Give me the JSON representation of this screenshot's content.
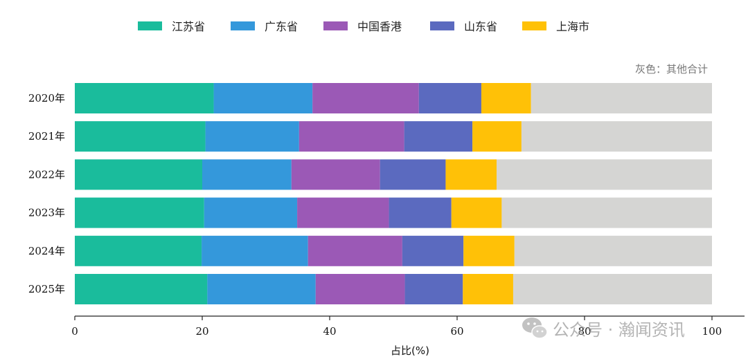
{
  "chart_data": {
    "type": "bar",
    "orientation": "horizontal",
    "stacked": true,
    "categories": [
      "2020年",
      "2021年",
      "2022年",
      "2023年",
      "2024年",
      "2025年"
    ],
    "series": [
      {
        "name": "江苏省",
        "color": "#1abc9c",
        "values": [
          21.8,
          20.5,
          20.0,
          20.3,
          19.9,
          20.8
        ]
      },
      {
        "name": "广东省",
        "color": "#3498db",
        "values": [
          15.5,
          14.7,
          14.0,
          14.6,
          16.7,
          17.0
        ]
      },
      {
        "name": "中国香港",
        "color": "#9b59b6",
        "values": [
          16.7,
          16.5,
          13.9,
          14.4,
          14.8,
          14.0
        ]
      },
      {
        "name": "山东省",
        "color": "#5b6abf",
        "values": [
          9.8,
          10.7,
          10.3,
          9.8,
          9.6,
          9.1
        ]
      },
      {
        "name": "上海市",
        "color": "#ffc107",
        "values": [
          7.8,
          7.7,
          8.0,
          7.9,
          8.0,
          7.9
        ]
      },
      {
        "color": "#d5d5d3",
        "values": [
          28.4,
          29.9,
          33.8,
          33.0,
          31.0,
          31.2
        ]
      }
    ],
    "note": "灰色：其他合计",
    "xlabel": "占比(%)",
    "ylabel": "",
    "xlim": [
      0,
      100
    ],
    "xticks": [
      0,
      20,
      40,
      60,
      80,
      100
    ],
    "legend_position": "top",
    "grid": false
  },
  "watermark": {
    "text": "公众号 · 瀚闻资讯",
    "icon": "wechat-icon"
  }
}
